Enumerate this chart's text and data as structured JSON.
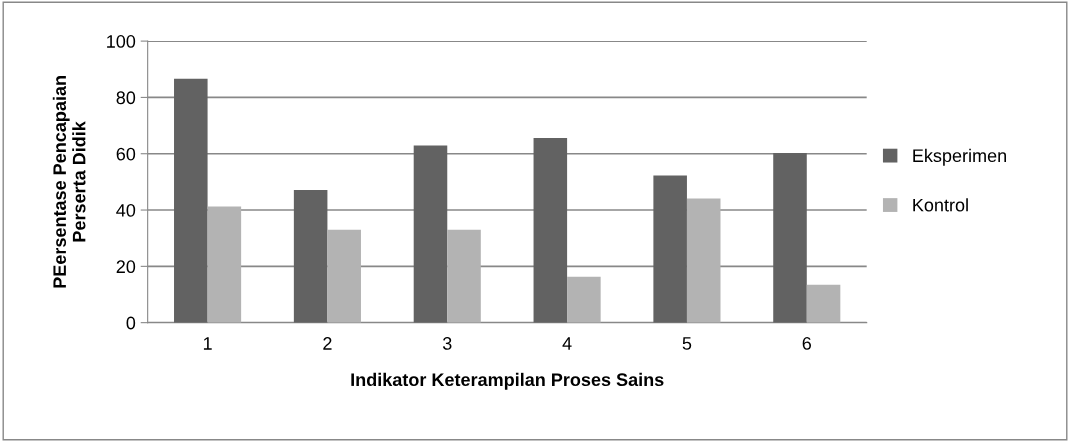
{
  "chart_data": {
    "type": "bar",
    "xlabel": "Indikator Keterampilan Proses Sains",
    "ylabel": "PEersentase Pencapaian\nPerserta Didik",
    "categories": [
      "1",
      "2",
      "3",
      "4",
      "5",
      "6"
    ],
    "series": [
      {
        "name": "Eksperimen",
        "color": "#626262",
        "values": [
          86.6,
          47.1,
          62.9,
          65.6,
          52.3,
          60.3
        ]
      },
      {
        "name": "Kontrol",
        "color": "#b3b3b3",
        "values": [
          41.3,
          33.0,
          33.0,
          16.3,
          44.1,
          13.5
        ]
      }
    ],
    "ylim": [
      0,
      100
    ],
    "yticks": [
      0,
      20,
      40,
      60,
      80,
      100
    ],
    "grid": "y",
    "legend": "right"
  }
}
